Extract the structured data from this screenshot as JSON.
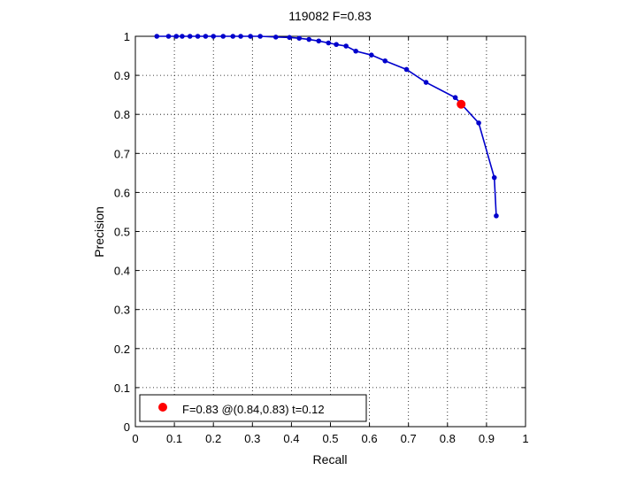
{
  "chart_data": {
    "type": "line",
    "title": "119082 F=0.83",
    "xlabel": "Recall",
    "ylabel": "Precision",
    "xlim": [
      0,
      1
    ],
    "ylim": [
      0,
      1
    ],
    "grid": true,
    "x_ticks": [
      "0",
      "0.1",
      "0.2",
      "0.3",
      "0.4",
      "0.5",
      "0.6",
      "0.7",
      "0.8",
      "0.9",
      "1"
    ],
    "y_ticks": [
      "0",
      "0.1",
      "0.2",
      "0.3",
      "0.4",
      "0.5",
      "0.6",
      "0.7",
      "0.8",
      "0.9",
      "1"
    ],
    "series": [
      {
        "color": "#0000cc",
        "x": [
          0.055,
          0.085,
          0.105,
          0.12,
          0.14,
          0.16,
          0.18,
          0.2,
          0.225,
          0.25,
          0.27,
          0.295,
          0.32,
          0.36,
          0.395,
          0.42,
          0.445,
          0.47,
          0.495,
          0.515,
          0.54,
          0.565,
          0.605,
          0.64,
          0.695,
          0.745,
          0.82,
          0.88,
          0.92,
          0.925
        ],
        "y": [
          1.0,
          1.0,
          1.0,
          1.0,
          1.0,
          1.0,
          1.0,
          1.0,
          1.0,
          1.0,
          1.0,
          1.0,
          1.0,
          0.998,
          0.997,
          0.995,
          0.992,
          0.988,
          0.983,
          0.979,
          0.975,
          0.962,
          0.952,
          0.937,
          0.915,
          0.882,
          0.843,
          0.778,
          0.638,
          0.54
        ]
      }
    ],
    "best_point": {
      "x": 0.835,
      "y": 0.826,
      "color": "#ff0000"
    },
    "legend": {
      "placement": "bottom-left",
      "label": "F=0.83 @(0.84,0.83) t=0.12"
    }
  }
}
